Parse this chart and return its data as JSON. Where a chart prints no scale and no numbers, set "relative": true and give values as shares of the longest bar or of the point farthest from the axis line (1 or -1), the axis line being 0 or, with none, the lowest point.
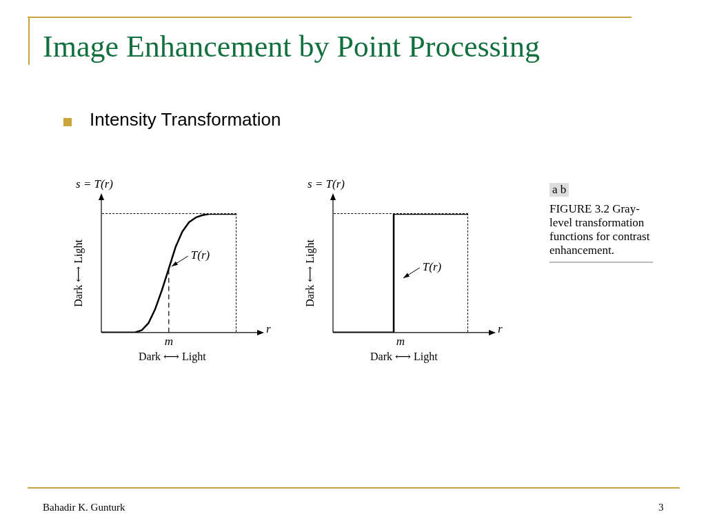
{
  "chart_data": [
    {
      "type": "line",
      "title": "Image Enhancement by Point Processing",
      "subtitle": "Intensity Transformation",
      "relative": true,
      "xlabel": "r",
      "ylabel": "s = T(r)",
      "categories": [
        null,
        null,
        null,
        null,
        null,
        null,
        null,
        null,
        null,
        null,
        null,
        null,
        null,
        null,
        null,
        null,
        null,
        null,
        null,
        null,
        null,
        null,
        null,
        null
      ],
      "series": [
        {
          "color": "#000000",
          "values": [
            0,
            0,
            0,
            0,
            0,
            0,
            0.02,
            0.08,
            0.2,
            0.36,
            0.54,
            0.72,
            0.85,
            0.93,
            0.97,
            0.99,
            1,
            1,
            1,
            1,
            1,
            null,
            null,
            null
          ]
        }
      ],
      "annotations": [
        "Dark ⟷ Light",
        "Dark ⟷ Light",
        "m",
        "T(r)",
        "Bahadir K. Gunturk",
        "3"
      ]
    },
    {
      "type": "step",
      "relative": true,
      "xlabel": "r",
      "ylabel": "s = T(r)",
      "categories": [
        null,
        null,
        null,
        null,
        null,
        null,
        null,
        null,
        null,
        null,
        null,
        null,
        null,
        null,
        null,
        null,
        null,
        null,
        null,
        null,
        null,
        null,
        null,
        null
      ],
      "series": [
        {
          "color": "#000000",
          "values": [
            0,
            0,
            0,
            0,
            0,
            0,
            0,
            0,
            0,
            0,
            1,
            1,
            1,
            1,
            1,
            1,
            1,
            1,
            1,
            1,
            1,
            null,
            null,
            null
          ]
        }
      ],
      "annotations": [
        "Dark ⟷ Light",
        "Dark ⟷ Light",
        "m",
        "T(r)",
        "a b",
        "FIGURE 3.2 Gray-level transformation functions for contrast enhancement."
      ]
    }
  ]
}
